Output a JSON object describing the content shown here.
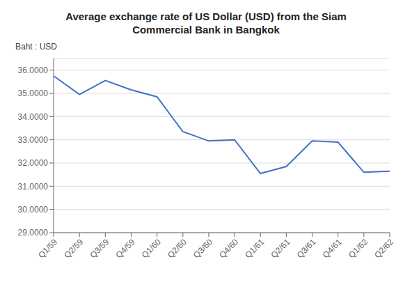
{
  "chart_data": {
    "type": "line",
    "title": "Average exchange rate of US Dollar (USD) from the Siam\nCommercial Bank in Bangkok",
    "ylabel": "Baht : USD",
    "categories": [
      "Q1/59",
      "Q2/59",
      "Q3/59",
      "Q4/59",
      "Q1/60",
      "Q2/60",
      "Q3/60",
      "Q4/60",
      "Q1/61",
      "Q2/61",
      "Q3/61",
      "Q4/61",
      "Q1/62",
      "Q2/62"
    ],
    "values": [
      35.75,
      34.95,
      35.55,
      35.15,
      34.85,
      33.35,
      32.95,
      33.0,
      31.55,
      31.85,
      32.95,
      32.9,
      31.6,
      31.65
    ],
    "color": "#4472C4",
    "ylim": [
      29.0,
      36.5
    ],
    "yticks": [
      {
        "value": 29.0,
        "label": "29.0000"
      },
      {
        "value": 30.0,
        "label": "30.0000"
      },
      {
        "value": 31.0,
        "label": "31.0000"
      },
      {
        "value": 32.0,
        "label": "32.0000"
      },
      {
        "value": 33.0,
        "label": "33.0000"
      },
      {
        "value": 34.0,
        "label": "34.0000"
      },
      {
        "value": 35.0,
        "label": "35.0000"
      },
      {
        "value": 36.0,
        "label": "36.0000"
      }
    ],
    "grid": true
  }
}
